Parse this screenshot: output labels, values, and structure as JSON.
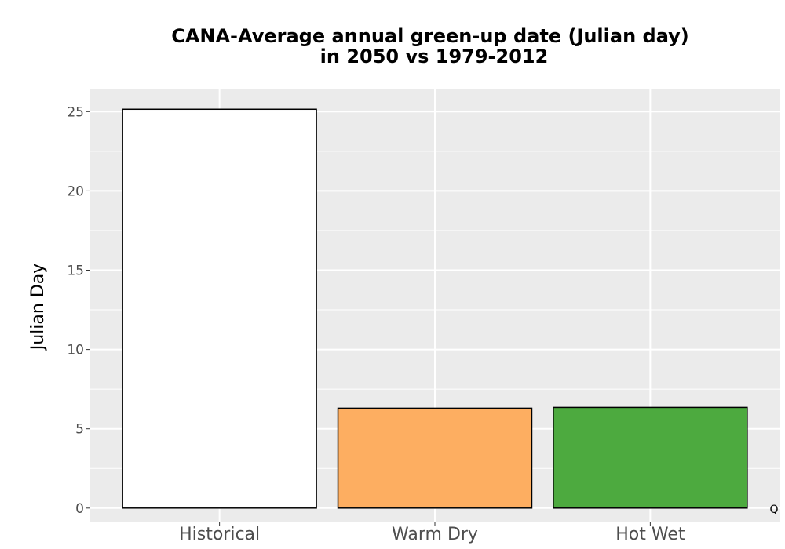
{
  "chart_data": {
    "type": "bar",
    "title_lines": [
      "CANA-Average annual green-up date (Julian day)",
      "in 2050 vs 1979-2012"
    ],
    "xlabel": "",
    "ylabel": "Julian Day",
    "categories": [
      "Historical",
      "Warm Dry",
      "Hot Wet"
    ],
    "values": [
      25.15,
      6.3,
      6.35
    ],
    "bar_colors": [
      "#ffffff",
      "#fdae61",
      "#4daa3f"
    ],
    "ylim": [
      -0.9,
      26.4
    ],
    "yticks": [
      0,
      5,
      10,
      15,
      20,
      25
    ],
    "ytick_labels": [
      "0",
      "5",
      "10",
      "15",
      "20",
      "25"
    ],
    "grid": true,
    "panel_background": "#ebebeb",
    "corner_mark": "Q"
  }
}
